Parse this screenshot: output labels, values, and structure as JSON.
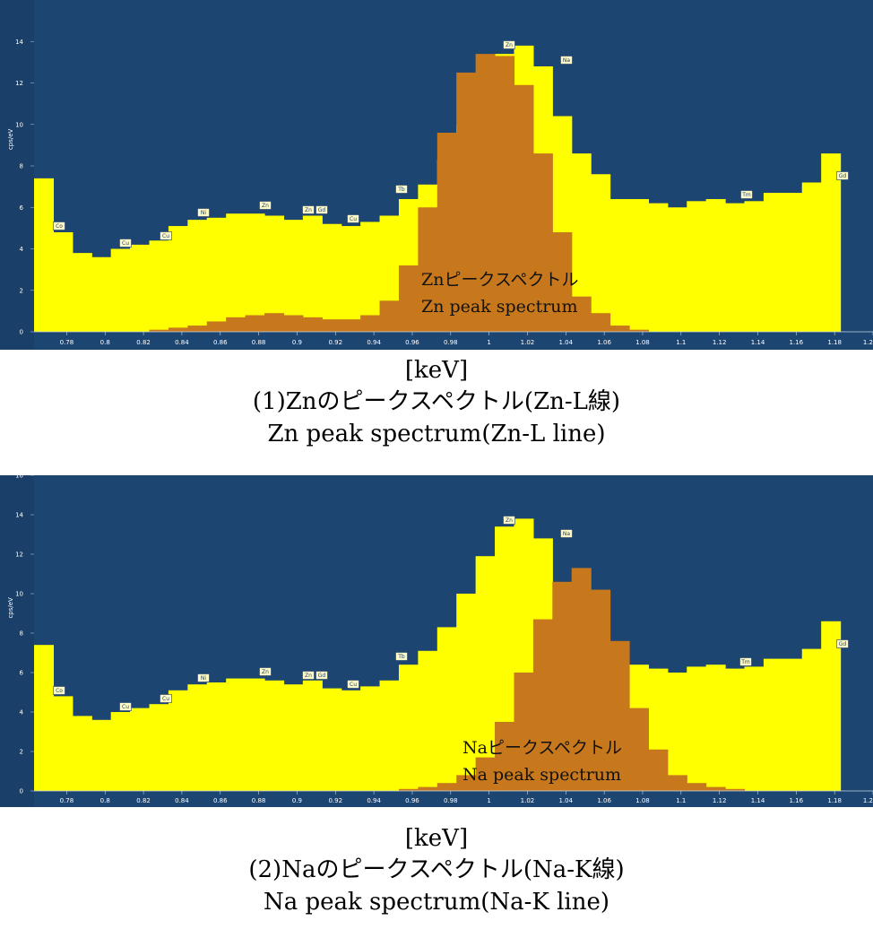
{
  "chart_data": [
    {
      "type": "bar",
      "title": "",
      "xlabel": "[keV]",
      "ylabel": "cps/eV",
      "xlim": [
        0.763,
        1.2
      ],
      "ylim": [
        0,
        16
      ],
      "yticks": [
        "0",
        "2",
        "4",
        "6",
        "8",
        "10",
        "12",
        "14"
      ],
      "xticks": [
        "0.78",
        "0.8",
        "0.82",
        "0.84",
        "0.86",
        "0.88",
        "0.9",
        "0.92",
        "0.94",
        "0.96",
        "0.98",
        "1",
        "1.02",
        "1.04",
        "1.06",
        "1.08",
        "1.1",
        "1.12",
        "1.14",
        "1.16",
        "1.18",
        "1.2"
      ],
      "bin_start": 0.763,
      "bin_width": 0.01,
      "series": [
        {
          "name": "",
          "color": "#ffff00",
          "values": [
            7.4,
            4.8,
            3.8,
            3.6,
            4.0,
            4.2,
            4.4,
            5.1,
            5.4,
            5.5,
            5.7,
            5.7,
            5.6,
            5.4,
            5.6,
            5.2,
            5.1,
            5.3,
            5.6,
            6.4,
            7.1,
            8.3,
            10.0,
            11.9,
            13.4,
            13.8,
            12.8,
            10.4,
            8.6,
            7.6,
            6.4,
            6.4,
            6.2,
            6.0,
            6.3,
            6.4,
            6.2,
            6.3,
            6.7,
            6.7,
            7.2,
            8.6
          ]
        },
        {
          "name": "Zn",
          "color": "#c8781c",
          "values": [
            0,
            0,
            0,
            0,
            0,
            0,
            0.1,
            0.2,
            0.3,
            0.5,
            0.7,
            0.8,
            0.9,
            0.8,
            0.7,
            0.6,
            0.6,
            0.8,
            1.5,
            3.2,
            6.0,
            9.6,
            12.5,
            13.4,
            13.3,
            11.9,
            8.6,
            4.8,
            1.7,
            0.9,
            0.3,
            0.1,
            0,
            0,
            0,
            0,
            0,
            0,
            0,
            0,
            0,
            0
          ]
        }
      ],
      "element_tags": [
        "Co",
        "Cu",
        "Cu",
        "Ni",
        "Zn",
        "Zn",
        "Gd",
        "Cu",
        "Tb",
        "Zn",
        "Na",
        "Tm",
        "Gd"
      ],
      "annotation": [
        "Znピークスペクトル",
        "Zn peak spectrum"
      ]
    },
    {
      "type": "bar",
      "title": "",
      "xlabel": "[keV]",
      "ylabel": "cps/eV",
      "xlim": [
        0.763,
        1.2
      ],
      "ylim": [
        0,
        16
      ],
      "yticks": [
        "0",
        "2",
        "4",
        "6",
        "8",
        "10",
        "12",
        "14",
        "16"
      ],
      "xticks": [
        "0.78",
        "0.8",
        "0.82",
        "0.84",
        "0.86",
        "0.88",
        "0.9",
        "0.92",
        "0.94",
        "0.96",
        "0.98",
        "1",
        "1.02",
        "1.04",
        "1.06",
        "1.08",
        "1.1",
        "1.12",
        "1.14",
        "1.16",
        "1.18",
        "1.2"
      ],
      "bin_start": 0.763,
      "bin_width": 0.01,
      "series": [
        {
          "name": "",
          "color": "#ffff00",
          "values": [
            7.4,
            4.8,
            3.8,
            3.6,
            4.0,
            4.2,
            4.4,
            5.1,
            5.4,
            5.5,
            5.7,
            5.7,
            5.6,
            5.4,
            5.6,
            5.2,
            5.1,
            5.3,
            5.6,
            6.4,
            7.1,
            8.3,
            10.0,
            11.9,
            13.4,
            13.8,
            12.8,
            10.4,
            8.6,
            7.6,
            6.4,
            6.4,
            6.2,
            6.0,
            6.3,
            6.4,
            6.2,
            6.3,
            6.7,
            6.7,
            7.2,
            8.6
          ]
        },
        {
          "name": "Na",
          "color": "#c8781c",
          "values": [
            0,
            0,
            0,
            0,
            0,
            0,
            0,
            0,
            0,
            0,
            0,
            0,
            0,
            0,
            0,
            0,
            0,
            0,
            0,
            0.1,
            0.2,
            0.4,
            0.8,
            1.7,
            3.5,
            6.0,
            8.7,
            10.6,
            11.3,
            10.2,
            7.6,
            4.2,
            2.1,
            0.8,
            0.4,
            0.2,
            0.1,
            0,
            0,
            0,
            0,
            0
          ]
        }
      ],
      "element_tags": [
        "Co",
        "Cu",
        "Cu",
        "Ni",
        "Zn",
        "Zn",
        "Gd",
        "Cu",
        "Tb",
        "Zn",
        "Na",
        "Tm",
        "Gd"
      ],
      "annotation": [
        "Naピークスペクトル",
        "Na peak spectrum"
      ]
    }
  ],
  "captions": [
    {
      "unit": "[keV]",
      "jp": "(1)Znのピークスペクトル(Zn-L線)",
      "en": "Zn peak spectrum(Zn-L line)"
    },
    {
      "unit": "[keV]",
      "jp": "(2)Naのピークスペクトル(Na-K線)",
      "en": "Na peak spectrum(Na-K line)"
    }
  ],
  "colors": {
    "background": "#1d4571",
    "continuum": "#ffff00",
    "peak": "#c8781c",
    "tag": "#fffbc8"
  }
}
